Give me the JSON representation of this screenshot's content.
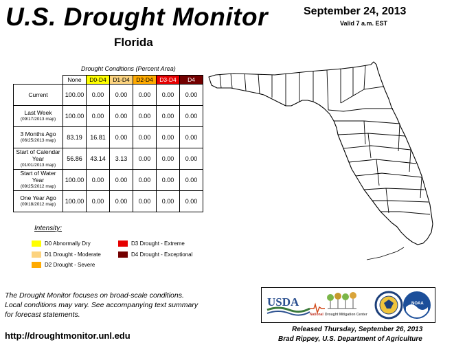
{
  "header": {
    "title": "U.S. Drought Monitor",
    "state": "Florida",
    "date": "September 24, 2013",
    "valid": "Valid 7 a.m. EST"
  },
  "table": {
    "caption": "Drought Conditions (Percent Area)",
    "columns": [
      "None",
      "D0-D4",
      "D1-D4",
      "D2-D4",
      "D3-D4",
      "D4"
    ],
    "rows": [
      {
        "label": "Current",
        "sub": "",
        "values": [
          "100.00",
          "0.00",
          "0.00",
          "0.00",
          "0.00",
          "0.00"
        ]
      },
      {
        "label": "Last Week",
        "sub": "(09/17/2013 map)",
        "values": [
          "100.00",
          "0.00",
          "0.00",
          "0.00",
          "0.00",
          "0.00"
        ]
      },
      {
        "label": "3 Months Ago",
        "sub": "(06/25/2013 map)",
        "values": [
          "83.19",
          "16.81",
          "0.00",
          "0.00",
          "0.00",
          "0.00"
        ]
      },
      {
        "label": "Start of Calendar Year",
        "sub": "(01/01/2013 map)",
        "values": [
          "56.86",
          "43.14",
          "3.13",
          "0.00",
          "0.00",
          "0.00"
        ]
      },
      {
        "label": "Start of Water Year",
        "sub": "(09/25/2012 map)",
        "values": [
          "100.00",
          "0.00",
          "0.00",
          "0.00",
          "0.00",
          "0.00"
        ]
      },
      {
        "label": "One Year Ago",
        "sub": "(09/18/2012 map)",
        "values": [
          "100.00",
          "0.00",
          "0.00",
          "0.00",
          "0.00",
          "0.00"
        ]
      }
    ]
  },
  "legend": {
    "title": "Intensity:",
    "items": [
      {
        "label": "D0 Abnormally Dry",
        "color": "#ffff00"
      },
      {
        "label": "D1 Drought - Moderate",
        "color": "#fcd37f"
      },
      {
        "label": "D2 Drought - Severe",
        "color": "#ffaa00"
      },
      {
        "label": "D3 Drought - Extreme",
        "color": "#e60000"
      },
      {
        "label": "D4 Drought - Exceptional",
        "color": "#730000"
      }
    ]
  },
  "footer": {
    "note_lines": [
      "The Drought Monitor focuses on broad-scale conditions.",
      "Local conditions may vary. See accompanying text summary",
      "for forecast statements."
    ],
    "url": "http://droughtmonitor.unl.edu",
    "released": "Released Thursday, September 26, 2013",
    "author": "Brad Rippey, U.S. Department of Agriculture"
  },
  "logos": {
    "usda": "USDA",
    "ndmc_line1": "National",
    "ndmc_line2": "Drought Mitigation Center",
    "doc_icon": "doc-seal-icon",
    "noaa_icon": "noaa-seal-icon",
    "noaa_text": "NOAA"
  },
  "map": {
    "region": "Florida",
    "fill": "#ffffff",
    "outline": "#000000"
  }
}
